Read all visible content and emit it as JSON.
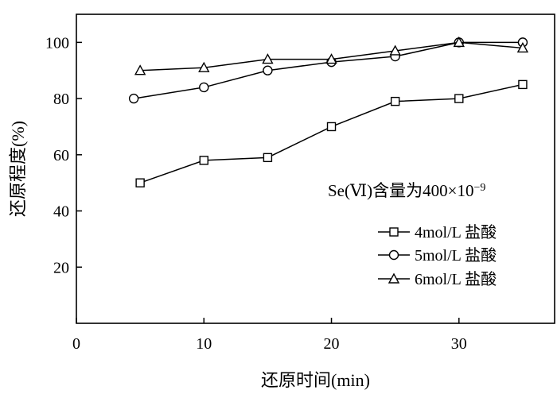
{
  "chart_data": {
    "type": "line",
    "title": "",
    "xlabel": "还原时间(min)",
    "ylabel": "还原程度(%)",
    "xlim": [
      0,
      37.5
    ],
    "ylim": [
      0,
      110
    ],
    "xticks": [
      0,
      10,
      20,
      30
    ],
    "yticks": [
      20,
      40,
      60,
      80,
      100
    ],
    "grid": false,
    "legend_position": "bottom-right",
    "annotation": "Se(Ⅵ)含量为400×10",
    "annotation_superscript": "−9",
    "series": [
      {
        "name": "4mol/L 盐酸",
        "marker": "square",
        "x": [
          5,
          10,
          15,
          20,
          25,
          30,
          35
        ],
        "y": [
          50,
          58,
          59,
          70,
          79,
          80,
          85
        ]
      },
      {
        "name": "5mol/L 盐酸",
        "marker": "circle",
        "x": [
          4.5,
          10,
          15,
          20,
          25,
          30,
          35
        ],
        "y": [
          80,
          84,
          90,
          93,
          95,
          100,
          100
        ]
      },
      {
        "name": "6mol/L 盐酸",
        "marker": "triangle",
        "x": [
          5,
          10,
          15,
          20,
          25,
          30,
          35
        ],
        "y": [
          90,
          91,
          94,
          94,
          97,
          100,
          98
        ]
      }
    ]
  }
}
